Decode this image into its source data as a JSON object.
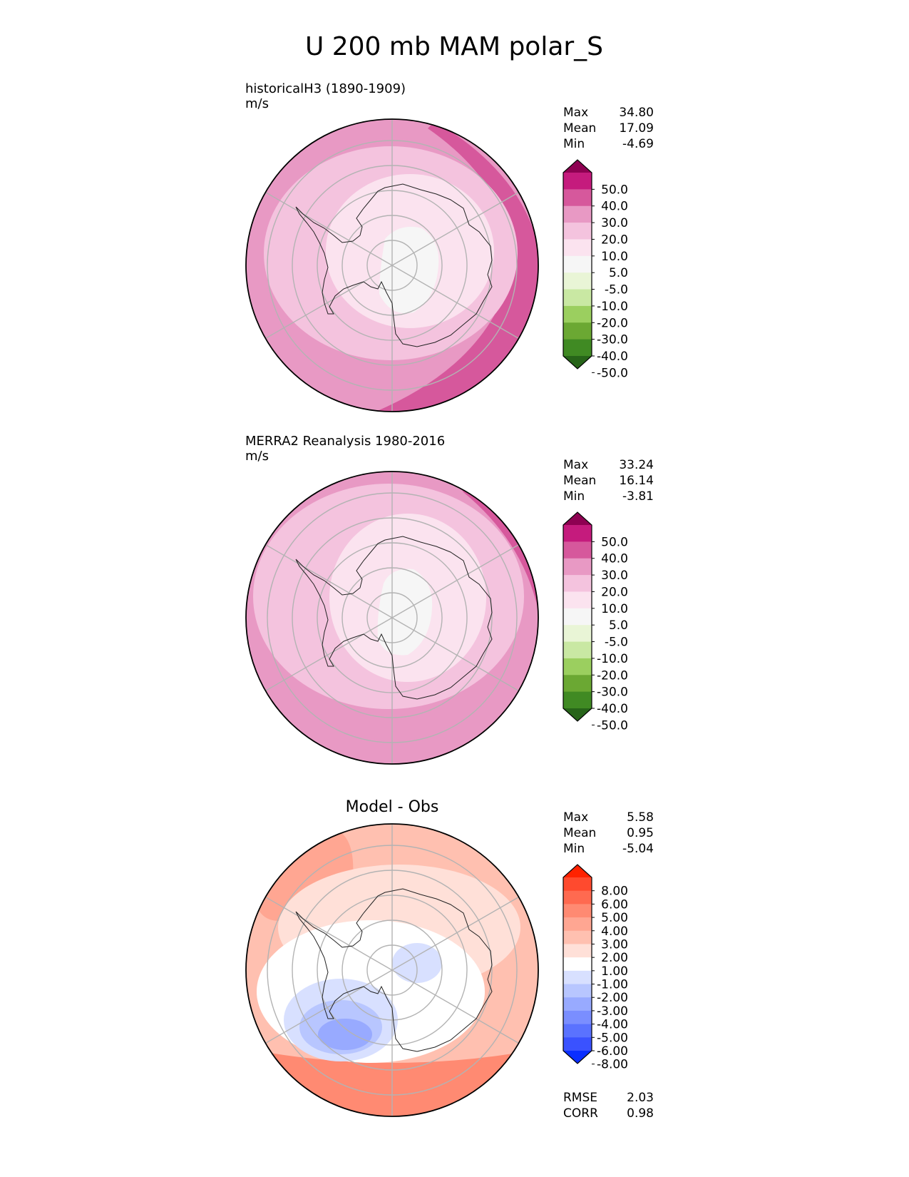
{
  "title": "U 200 mb MAM polar_S",
  "chart_data": [
    {
      "type": "heatmap",
      "projection": "south-polar-stereographic",
      "subtitle": "historicalH3 (1890-1909)",
      "units": "m/s",
      "colormap": "pink-to-green diverging",
      "colors": [
        "#8e0152",
        "#c51b7d",
        "#d6589c",
        "#e899c4",
        "#f4c3de",
        "#fbe3ef",
        "#f6f6f6",
        "#e9f5d6",
        "#c9e8a3",
        "#9bcf5f",
        "#6ba833",
        "#408a23",
        "#276419"
      ],
      "levels_labels": [
        "50.0",
        "40.0",
        "30.0",
        "20.0",
        "10.0",
        "5.0",
        "-5.0",
        "-10.0",
        "-20.0",
        "-30.0",
        "-40.0",
        "-50.0"
      ],
      "stats": [
        {
          "label": "Max",
          "value": "34.80"
        },
        {
          "label": "Mean",
          "value": "17.09"
        },
        {
          "label": "Min",
          "value": "-4.69"
        }
      ]
    },
    {
      "type": "heatmap",
      "projection": "south-polar-stereographic",
      "subtitle": "MERRA2 Reanalysis 1980-2016",
      "units": "m/s",
      "colormap": "pink-to-green diverging",
      "colors": [
        "#8e0152",
        "#c51b7d",
        "#d6589c",
        "#e899c4",
        "#f4c3de",
        "#fbe3ef",
        "#f6f6f6",
        "#e9f5d6",
        "#c9e8a3",
        "#9bcf5f",
        "#6ba833",
        "#408a23",
        "#276419"
      ],
      "levels_labels": [
        "50.0",
        "40.0",
        "30.0",
        "20.0",
        "10.0",
        "5.0",
        "-5.0",
        "-10.0",
        "-20.0",
        "-30.0",
        "-40.0",
        "-50.0"
      ],
      "stats": [
        {
          "label": "Max",
          "value": "33.24"
        },
        {
          "label": "Mean",
          "value": "16.14"
        },
        {
          "label": "Min",
          "value": "-3.81"
        }
      ]
    },
    {
      "type": "heatmap",
      "projection": "south-polar-stereographic",
      "subtitle": "Model - Obs",
      "units": "",
      "colormap": "red-to-blue diverging",
      "colors": [
        "#ff2200",
        "#ff4a2e",
        "#ff6a50",
        "#ff8a72",
        "#ffa692",
        "#ffc0b0",
        "#ffe0d8",
        "#ffffff",
        "#d8e0ff",
        "#b8c6ff",
        "#98aaff",
        "#7a8eff",
        "#5a72ff",
        "#3a52ff",
        "#0a2eff"
      ],
      "levels_labels": [
        "8.00",
        "6.00",
        "5.00",
        "4.00",
        "3.00",
        "2.00",
        "1.00",
        "-1.00",
        "-2.00",
        "-3.00",
        "-4.00",
        "-5.00",
        "-6.00",
        "-8.00"
      ],
      "stats": [
        {
          "label": "Max",
          "value": "5.58"
        },
        {
          "label": "Mean",
          "value": "0.95"
        },
        {
          "label": "Min",
          "value": "-5.04"
        }
      ],
      "metrics": [
        {
          "label": "RMSE",
          "value": "2.03"
        },
        {
          "label": "CORR",
          "value": "0.98"
        }
      ]
    }
  ]
}
